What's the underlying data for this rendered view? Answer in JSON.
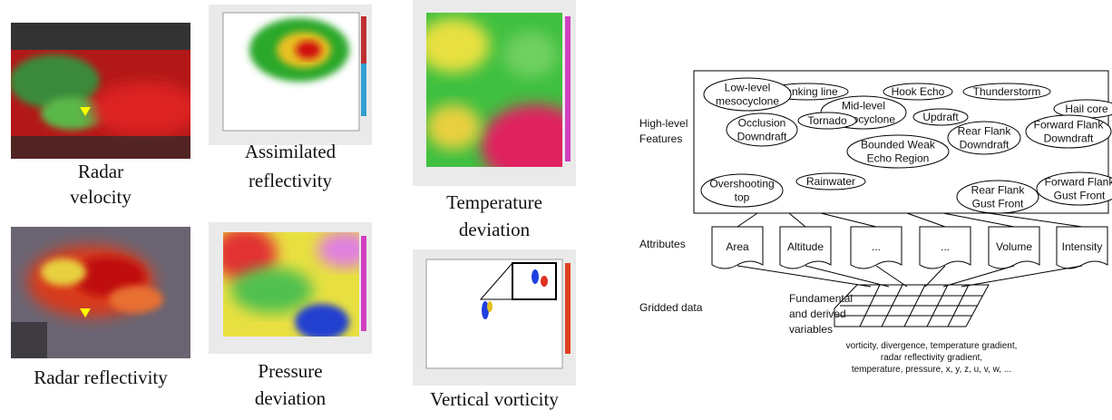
{
  "panels": [
    {
      "caption": [
        "Radar",
        "velocity"
      ]
    },
    {
      "caption": [
        "Radar reflectivity"
      ]
    },
    {
      "caption": [
        "Assimilated",
        "reflectivity"
      ]
    },
    {
      "caption": [
        "Pressure",
        "deviation"
      ]
    },
    {
      "caption": [
        "Temperature",
        "deviation"
      ]
    },
    {
      "caption": [
        "Vertical vorticity"
      ]
    }
  ],
  "diagram": {
    "levels": [
      [
        "High-level",
        "Features"
      ],
      [
        "Attributes"
      ],
      [
        "Gridded data"
      ]
    ],
    "features": [
      [
        "Flanking line"
      ],
      [
        "Hook Echo"
      ],
      [
        "Thunderstorm"
      ],
      [
        "Low-level",
        "mesocyclone"
      ],
      [
        "Mid-level",
        "mesocyclone"
      ],
      [
        "Updraft"
      ],
      [
        "Hail core"
      ],
      [
        "Occlusion",
        "Downdraft"
      ],
      [
        "Tornado"
      ],
      [
        "Bounded Weak",
        "Echo Region"
      ],
      [
        "Rear Flank",
        "Downdraft"
      ],
      [
        "Forward Flank",
        "Downdraft"
      ],
      [
        "Overshooting",
        "top"
      ],
      [
        "Rainwater"
      ],
      [
        "Rear Flank",
        "Gust Front"
      ],
      [
        "Forward Flank",
        "Gust Front"
      ]
    ],
    "attributes": [
      "Area",
      "Altitude",
      "...",
      "...",
      "Volume",
      "Intensity"
    ],
    "grid_label": [
      "Fundamental",
      "and derived",
      "variables"
    ],
    "variables": [
      "vorticity, divergence, temperature gradient,",
      "radar reflectivity gradient,",
      "temperature, pressure, x, y, z, u, v, w, ..."
    ]
  }
}
